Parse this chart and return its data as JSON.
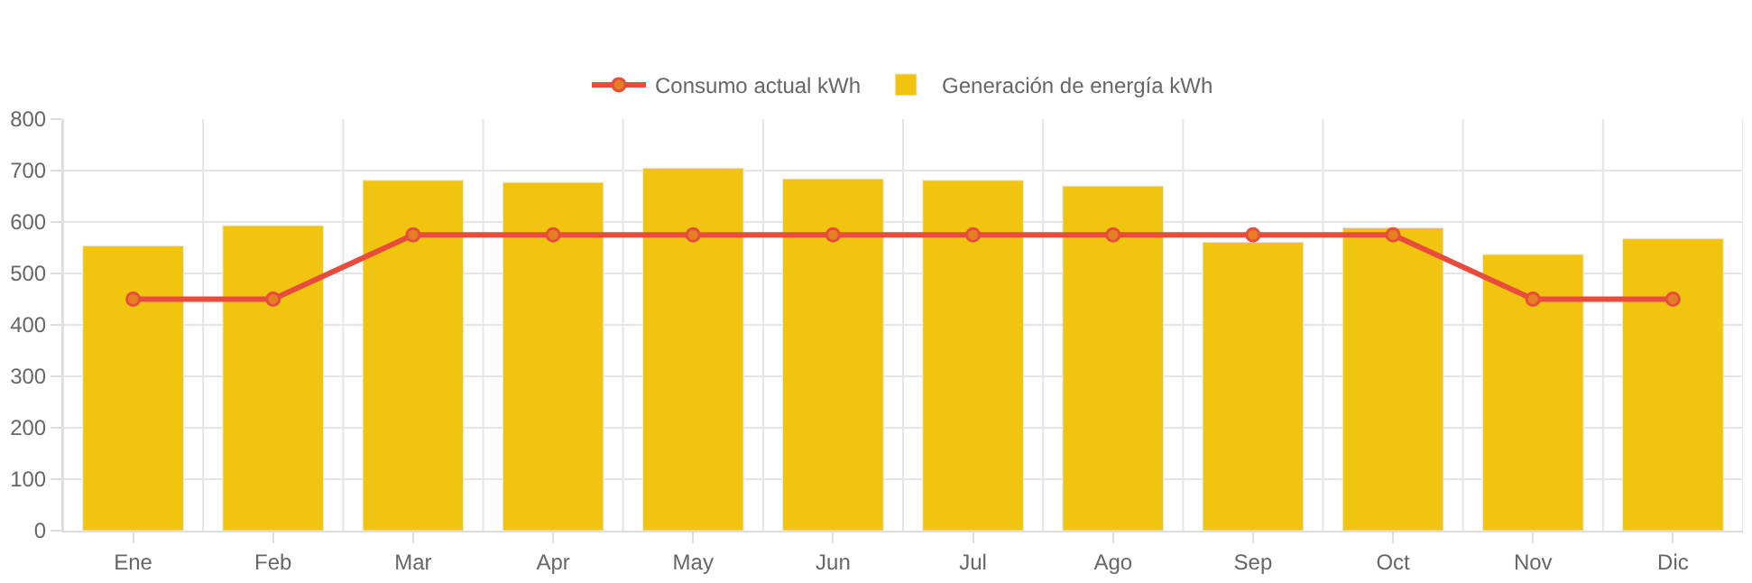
{
  "chart_data": {
    "type": "bar",
    "categories": [
      "Ene",
      "Feb",
      "Mar",
      "Apr",
      "May",
      "Jun",
      "Jul",
      "Ago",
      "Sep",
      "Oct",
      "Nov",
      "Dic"
    ],
    "series": [
      {
        "name": "Consumo actual kWh",
        "type": "line",
        "color": "#e74c3c",
        "marker": "circle",
        "values": [
          450,
          450,
          575,
          575,
          575,
          575,
          575,
          575,
          575,
          575,
          450,
          450
        ]
      },
      {
        "name": "Generación de energía kWh",
        "color": "#f1c40f",
        "values": [
          554,
          593,
          681,
          677,
          705,
          684,
          681,
          670,
          561,
          589,
          537,
          568
        ]
      }
    ],
    "ylim": [
      0,
      800
    ],
    "yticks": [
      0,
      100,
      200,
      300,
      400,
      500,
      600,
      700,
      800
    ],
    "grid": true,
    "legend": "top"
  }
}
